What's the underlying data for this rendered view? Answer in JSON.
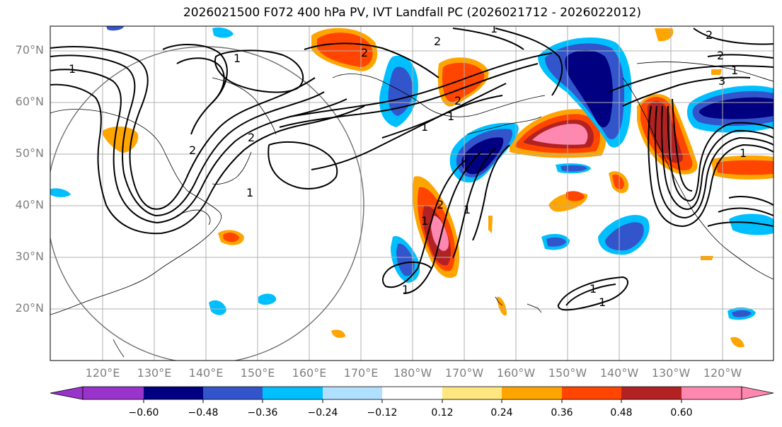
{
  "title": "2026021500 F072 400 hPa PV, IVT Landfall PC (2026021712 - 2026022012)",
  "lat_labels": [
    "70°N",
    "60°N",
    "50°N",
    "40°N",
    "30°N",
    "20°N"
  ],
  "lon_labels": [
    "120°E",
    "130°E",
    "140°E",
    "150°E",
    "160°E",
    "170°E",
    "180°W",
    "170°W",
    "160°W",
    "150°W",
    "140°W",
    "130°W",
    "120°W"
  ],
  "colorbar": {
    "ticks": [
      "−0.60",
      "−0.48",
      "−0.36",
      "−0.24",
      "−0.12",
      "0.12",
      "0.24",
      "0.36",
      "0.48",
      "0.60"
    ],
    "colors": [
      "#9933cc",
      "#000080",
      "#3355cc",
      "#00bfff",
      "#b0e0ff",
      "#ffffff",
      "#ffe680",
      "#ffa500",
      "#ff4500",
      "#b22222",
      "#ff88b0"
    ]
  },
  "contour_labels": [
    "1",
    "1",
    "2",
    "2",
    "1",
    "2",
    "2",
    "1",
    "1",
    "1",
    "2",
    "1",
    "1",
    "1",
    "2",
    "1",
    "1",
    "3",
    "2",
    "2",
    "1",
    "1"
  ]
}
